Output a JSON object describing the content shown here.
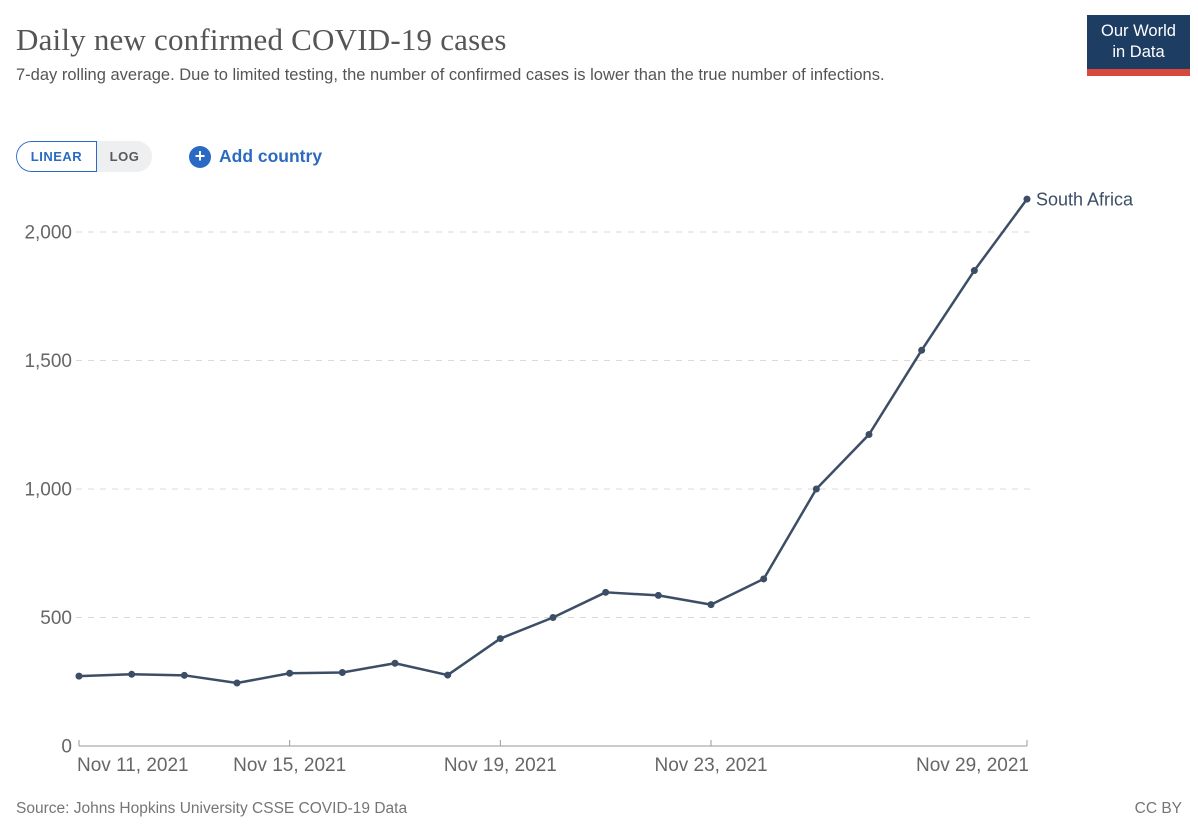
{
  "header": {
    "title": "Daily new confirmed COVID-19 cases",
    "subtitle": "7-day rolling average. Due to limited testing, the number of confirmed cases is lower than the true number of infections.",
    "logo": {
      "line1": "Our World",
      "line2": "in Data",
      "bg_color": "#1d3d63",
      "bar_color": "#d6493b"
    }
  },
  "controls": {
    "linear_label": "LINEAR",
    "log_label": "LOG",
    "active_scale": "LINEAR",
    "plus_icon": "+",
    "add_country_label": "Add country",
    "accent_color": "#2b6ac3"
  },
  "chart_data": {
    "type": "line",
    "title": "Daily new confirmed COVID-19 cases",
    "x": [
      "Nov 11, 2021",
      "Nov 12, 2021",
      "Nov 13, 2021",
      "Nov 14, 2021",
      "Nov 15, 2021",
      "Nov 16, 2021",
      "Nov 17, 2021",
      "Nov 18, 2021",
      "Nov 19, 2021",
      "Nov 20, 2021",
      "Nov 21, 2021",
      "Nov 22, 2021",
      "Nov 23, 2021",
      "Nov 24, 2021",
      "Nov 25, 2021",
      "Nov 26, 2021",
      "Nov 27, 2021",
      "Nov 28, 2021",
      "Nov 29, 2021"
    ],
    "series": [
      {
        "name": "South Africa",
        "color": "#3C4E66",
        "values": [
          272,
          279,
          275,
          245,
          283,
          286,
          322,
          276,
          418,
          500,
          598,
          586,
          550,
          650,
          1000,
          1212,
          1540,
          1850,
          2128
        ]
      }
    ],
    "ylim": [
      0,
      2150
    ],
    "y_ticks": [
      {
        "value": 0,
        "label": "0"
      },
      {
        "value": 500,
        "label": "500"
      },
      {
        "value": 1000,
        "label": "1,000"
      },
      {
        "value": 1500,
        "label": "1,500"
      },
      {
        "value": 2000,
        "label": "2,000"
      }
    ],
    "x_ticks": [
      {
        "index": 0,
        "label": "Nov 11, 2021",
        "anchor": "start"
      },
      {
        "index": 4,
        "label": "Nov 15, 2021",
        "anchor": "middle"
      },
      {
        "index": 8,
        "label": "Nov 19, 2021",
        "anchor": "middle"
      },
      {
        "index": 12,
        "label": "Nov 23, 2021",
        "anchor": "middle"
      },
      {
        "index": 18,
        "label": "Nov 29, 2021",
        "anchor": "end"
      }
    ],
    "grid": true,
    "legend_position": "end-of-line",
    "axis_color": "#999999",
    "grid_color": "#dadada",
    "tick_label_color": "#666666"
  },
  "footer": {
    "source": "Source: Johns Hopkins University CSSE COVID-19 Data",
    "license": "CC BY"
  }
}
